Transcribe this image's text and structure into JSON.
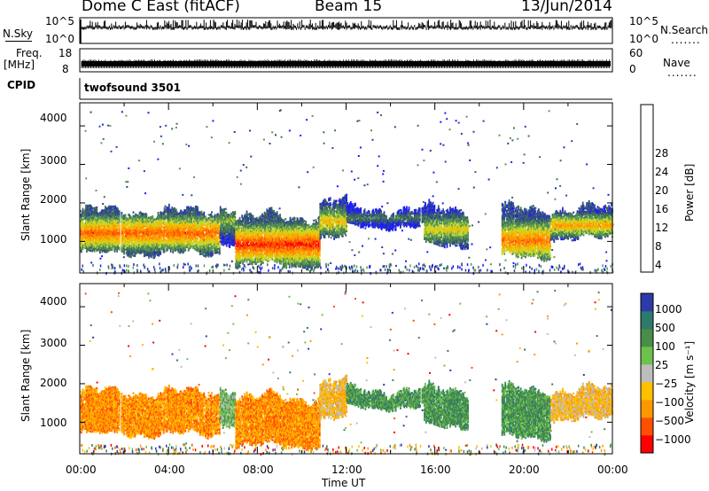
{
  "header": {
    "station": "Dome C East (fitACF)",
    "beam": "Beam 15",
    "date": "13/Jun/2014"
  },
  "top_panels": {
    "nsky_label": "N.Sky",
    "nsky_ticks": [
      "10^5",
      "10^0"
    ],
    "nsearch_label": "N.Search",
    "nsearch_ticks": [
      "10^5",
      "10^0"
    ],
    "freq_label": "Freq.",
    "freq_unit": "[MHz]",
    "freq_ticks": [
      "18",
      "8"
    ],
    "nave_label": "Nave",
    "nave_ticks": [
      "60",
      "0"
    ],
    "cpid_label": "CPID",
    "cpid_value": "twofsound 3501",
    "dotted": "......."
  },
  "colors": {
    "power": [
      "#1a1aff",
      "#2f3fa0",
      "#3f6f55",
      "#5a9a55",
      "#c8d828",
      "#f5b800",
      "#ff8c00",
      "#ff5000",
      "#ff0000"
    ],
    "velocity": [
      "#ff0000",
      "#ff5000",
      "#ff9800",
      "#ffc000",
      "#bdbdbd",
      "#6cc24a",
      "#4a8c4a",
      "#2e7a6a",
      "#2d3aa8"
    ]
  },
  "chart_data": [
    {
      "type": "heatmap",
      "name": "power",
      "ylabel": "Slant Range [km]",
      "ylim": [
        180,
        4600
      ],
      "yticks": [
        "4000",
        "3000",
        "2000",
        "1000"
      ],
      "xlim": [
        0,
        24
      ],
      "colorbar_label": "Power [dB]",
      "colorbar_ticks": [
        "28",
        "24",
        "20",
        "16",
        "12",
        "8",
        "4"
      ],
      "colorbar_range": [
        0,
        32
      ],
      "scatter_bands": [
        {
          "t0": 0.0,
          "t1": 6.3,
          "r_low": 700,
          "r_high": 1750,
          "peak": 1200,
          "level": 26
        },
        {
          "t0": 6.3,
          "t1": 7.0,
          "r_low": 1000,
          "r_high": 1900,
          "peak": 1500,
          "level": 14
        },
        {
          "t0": 7.0,
          "t1": 10.8,
          "r_low": 400,
          "r_high": 1600,
          "peak": 900,
          "level": 29
        },
        {
          "t0": 10.8,
          "t1": 12.0,
          "r_low": 1100,
          "r_high": 2000,
          "peak": 1500,
          "level": 20
        },
        {
          "t0": 12.0,
          "t1": 15.5,
          "r_low": 1400,
          "r_high": 1800,
          "peak": 1600,
          "level": 10
        },
        {
          "t0": 15.5,
          "t1": 17.5,
          "r_low": 900,
          "r_high": 1800,
          "peak": 1300,
          "level": 18
        },
        {
          "t0": 19.0,
          "t1": 21.2,
          "r_low": 600,
          "r_high": 1800,
          "peak": 1000,
          "level": 25
        },
        {
          "t0": 21.2,
          "t1": 24.0,
          "r_low": 1100,
          "r_high": 1800,
          "peak": 1400,
          "level": 22
        }
      ]
    },
    {
      "type": "heatmap",
      "name": "velocity",
      "ylabel": "Slant Range [km]",
      "ylim": [
        180,
        4600
      ],
      "yticks": [
        "4000",
        "3000",
        "2000",
        "1000"
      ],
      "xlim": [
        0,
        24
      ],
      "xticks": [
        "00:00",
        "04:00",
        "08:00",
        "12:00",
        "16:00",
        "20:00",
        "00:00"
      ],
      "xlabel": "Time UT",
      "colorbar_label": "Velocity [m s⁻¹]",
      "colorbar_ticks": [
        "1000",
        "500",
        "100",
        "25",
        "−25",
        "−100",
        "−500",
        "−1000"
      ],
      "scatter_bands": [
        {
          "t0": 0.0,
          "t1": 6.3,
          "r_low": 700,
          "r_high": 1750,
          "peak": 1200,
          "level": 2
        },
        {
          "t0": 6.3,
          "t1": 7.0,
          "r_low": 1000,
          "r_high": 1900,
          "peak": 1500,
          "level": 5
        },
        {
          "t0": 7.0,
          "t1": 10.8,
          "r_low": 400,
          "r_high": 1600,
          "peak": 900,
          "level": 2
        },
        {
          "t0": 10.8,
          "t1": 12.0,
          "r_low": 1100,
          "r_high": 2000,
          "peak": 1500,
          "level": 3
        },
        {
          "t0": 12.0,
          "t1": 15.5,
          "r_low": 1400,
          "r_high": 1800,
          "peak": 1600,
          "level": 6
        },
        {
          "t0": 15.5,
          "t1": 17.5,
          "r_low": 900,
          "r_high": 1800,
          "peak": 1300,
          "level": 6
        },
        {
          "t0": 19.0,
          "t1": 21.2,
          "r_low": 600,
          "r_high": 1800,
          "peak": 1000,
          "level": 6
        },
        {
          "t0": 21.2,
          "t1": 24.0,
          "r_low": 1100,
          "r_high": 1800,
          "peak": 1400,
          "level": 3
        }
      ]
    }
  ]
}
